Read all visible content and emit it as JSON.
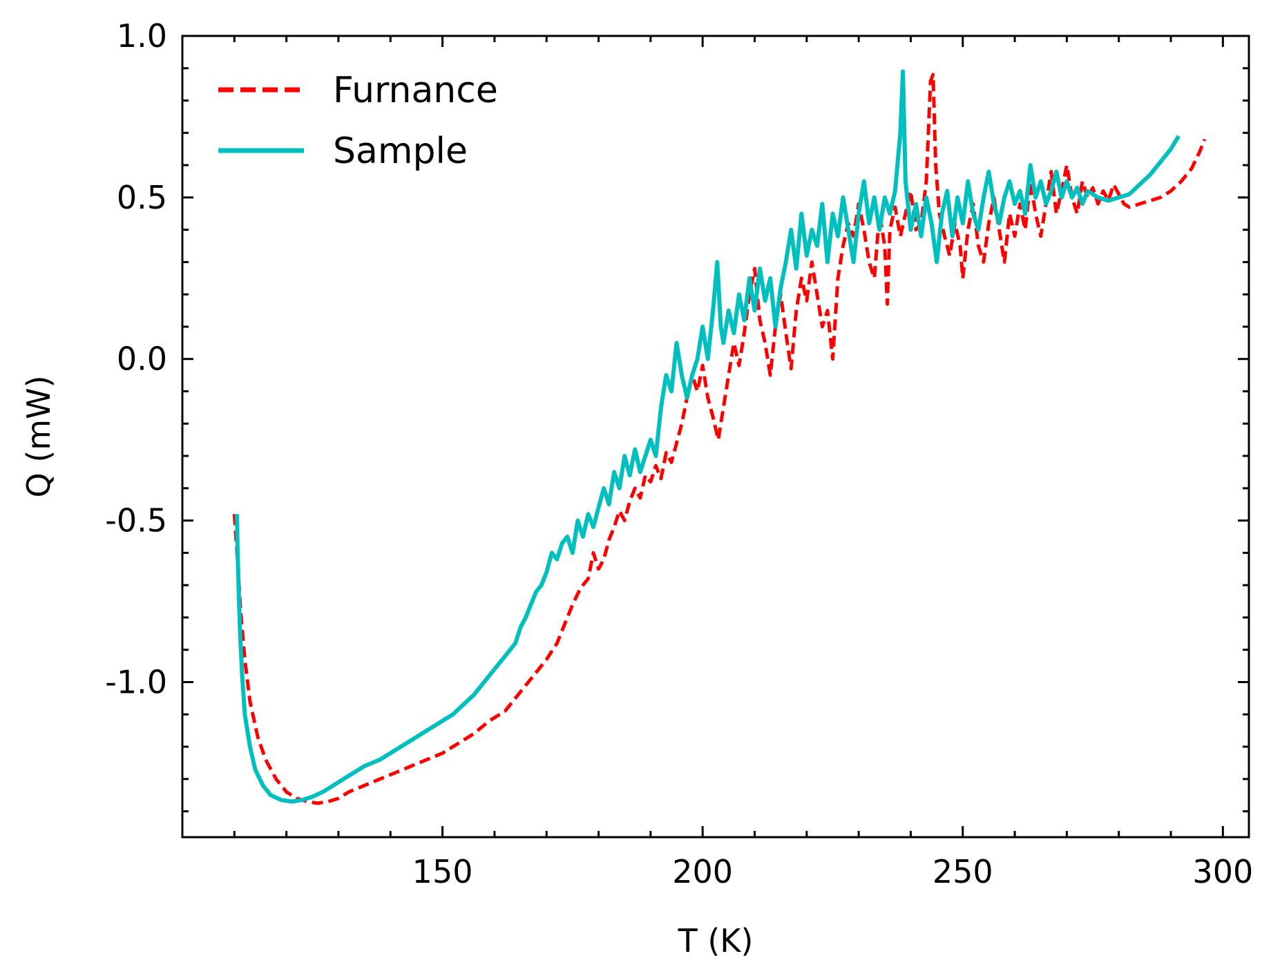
{
  "chart_data": {
    "type": "line",
    "xlabel": "T (K)",
    "ylabel": "Q (mW)",
    "xlim": [
      100,
      305
    ],
    "ylim": [
      -1.48,
      1.0
    ],
    "x_major_ticks": [
      150,
      200,
      250,
      300
    ],
    "x_major_tick_labels": [
      "150",
      "200",
      "250",
      "300"
    ],
    "x_minor_ticks": [
      110,
      120,
      130,
      140,
      160,
      170,
      180,
      190,
      210,
      220,
      230,
      240,
      260,
      270,
      280,
      290
    ],
    "y_major_ticks": [
      -1.0,
      -0.5,
      0.0,
      0.5,
      1.0
    ],
    "y_major_tick_labels": [
      "-1.0",
      "-0.5",
      "0.0",
      "0.5",
      "1.0"
    ],
    "y_minor_ticks": [
      -1.4,
      -1.3,
      -1.2,
      -1.1,
      -0.9,
      -0.8,
      -0.7,
      -0.6,
      -0.4,
      -0.3,
      -0.2,
      -0.1,
      0.1,
      0.2,
      0.3,
      0.4,
      0.6,
      0.7,
      0.8,
      0.9
    ],
    "grid": false,
    "legend_position": "top-left",
    "series": [
      {
        "name": "Furnance",
        "color": "#ff0000",
        "style": "dashed",
        "points": [
          [
            110.0,
            -0.48
          ],
          [
            110.3,
            -0.55
          ],
          [
            110.7,
            -0.65
          ],
          [
            111.2,
            -0.78
          ],
          [
            112.0,
            -0.93
          ],
          [
            113.0,
            -1.06
          ],
          [
            114.5,
            -1.17
          ],
          [
            116.0,
            -1.24
          ],
          [
            118.0,
            -1.3
          ],
          [
            120.0,
            -1.34
          ],
          [
            122.0,
            -1.36
          ],
          [
            124.0,
            -1.37
          ],
          [
            126.0,
            -1.375
          ],
          [
            128.0,
            -1.37
          ],
          [
            130.0,
            -1.36
          ],
          [
            132.0,
            -1.34
          ],
          [
            135.0,
            -1.32
          ],
          [
            138.0,
            -1.3
          ],
          [
            141.0,
            -1.28
          ],
          [
            144.0,
            -1.26
          ],
          [
            147.0,
            -1.24
          ],
          [
            150.0,
            -1.22
          ],
          [
            153.0,
            -1.19
          ],
          [
            156.0,
            -1.16
          ],
          [
            159.0,
            -1.12
          ],
          [
            162.0,
            -1.09
          ],
          [
            164.0,
            -1.05
          ],
          [
            166.0,
            -1.01
          ],
          [
            168.0,
            -0.97
          ],
          [
            170.0,
            -0.93
          ],
          [
            172.0,
            -0.88
          ],
          [
            173.5,
            -0.82
          ],
          [
            175.0,
            -0.76
          ],
          [
            176.5,
            -0.71
          ],
          [
            178.0,
            -0.68
          ],
          [
            179.0,
            -0.6
          ],
          [
            180.0,
            -0.65
          ],
          [
            181.0,
            -0.62
          ],
          [
            182.0,
            -0.56
          ],
          [
            183.0,
            -0.52
          ],
          [
            184.0,
            -0.47
          ],
          [
            185.0,
            -0.5
          ],
          [
            186.0,
            -0.44
          ],
          [
            187.0,
            -0.4
          ],
          [
            188.0,
            -0.43
          ],
          [
            189.0,
            -0.36
          ],
          [
            190.0,
            -0.38
          ],
          [
            191.0,
            -0.33
          ],
          [
            192.0,
            -0.37
          ],
          [
            193.0,
            -0.29
          ],
          [
            194.0,
            -0.32
          ],
          [
            195.0,
            -0.26
          ],
          [
            196.0,
            -0.2
          ],
          [
            197.0,
            -0.12
          ],
          [
            198.0,
            -0.05
          ],
          [
            199.0,
            -0.1
          ],
          [
            200.0,
            -0.02
          ],
          [
            201.0,
            -0.12
          ],
          [
            202.0,
            -0.18
          ],
          [
            203.0,
            -0.25
          ],
          [
            204.0,
            -0.15
          ],
          [
            205.0,
            -0.05
          ],
          [
            206.0,
            0.05
          ],
          [
            207.0,
            -0.02
          ],
          [
            208.0,
            0.08
          ],
          [
            209.0,
            0.2
          ],
          [
            210.0,
            0.28
          ],
          [
            211.0,
            0.12
          ],
          [
            212.0,
            0.05
          ],
          [
            213.0,
            -0.05
          ],
          [
            214.0,
            0.1
          ],
          [
            215.0,
            0.2
          ],
          [
            216.0,
            0.08
          ],
          [
            217.0,
            -0.03
          ],
          [
            218.0,
            0.15
          ],
          [
            219.0,
            0.25
          ],
          [
            220.0,
            0.18
          ],
          [
            221.0,
            0.3
          ],
          [
            222.0,
            0.2
          ],
          [
            223.0,
            0.1
          ],
          [
            224.0,
            0.15
          ],
          [
            225.0,
            0.0
          ],
          [
            226.0,
            0.25
          ],
          [
            227.0,
            0.35
          ],
          [
            228.0,
            0.42
          ],
          [
            229.0,
            0.38
          ],
          [
            230.0,
            0.48
          ],
          [
            231.0,
            0.4
          ],
          [
            232.0,
            0.3
          ],
          [
            233.0,
            0.25
          ],
          [
            234.0,
            0.45
          ],
          [
            235.0,
            0.35
          ],
          [
            235.5,
            0.17
          ],
          [
            236.0,
            0.4
          ],
          [
            237.0,
            0.47
          ],
          [
            238.0,
            0.38
          ],
          [
            239.0,
            0.45
          ],
          [
            240.0,
            0.52
          ],
          [
            241.0,
            0.4
          ],
          [
            242.0,
            0.42
          ],
          [
            243.0,
            0.55
          ],
          [
            243.8,
            0.86
          ],
          [
            244.3,
            0.88
          ],
          [
            244.8,
            0.6
          ],
          [
            245.5,
            0.45
          ],
          [
            246.5,
            0.38
          ],
          [
            247.5,
            0.32
          ],
          [
            248.5,
            0.42
          ],
          [
            249.5,
            0.35
          ],
          [
            250.0,
            0.25
          ],
          [
            251.0,
            0.4
          ],
          [
            252.0,
            0.48
          ],
          [
            253.0,
            0.35
          ],
          [
            254.0,
            0.3
          ],
          [
            255.0,
            0.42
          ],
          [
            256.0,
            0.5
          ],
          [
            257.0,
            0.4
          ],
          [
            258.0,
            0.3
          ],
          [
            259.0,
            0.45
          ],
          [
            260.0,
            0.38
          ],
          [
            261.0,
            0.48
          ],
          [
            262.0,
            0.4
          ],
          [
            263.0,
            0.55
          ],
          [
            264.0,
            0.45
          ],
          [
            265.0,
            0.38
          ],
          [
            266.0,
            0.48
          ],
          [
            267.0,
            0.58
          ],
          [
            268.0,
            0.45
          ],
          [
            269.0,
            0.52
          ],
          [
            270.0,
            0.6
          ],
          [
            271.0,
            0.5
          ],
          [
            272.0,
            0.45
          ],
          [
            273.0,
            0.55
          ],
          [
            274.0,
            0.5
          ],
          [
            275.0,
            0.53
          ],
          [
            276.0,
            0.48
          ],
          [
            277.0,
            0.52
          ],
          [
            278.0,
            0.49
          ],
          [
            279.0,
            0.54
          ],
          [
            280.0,
            0.51
          ],
          [
            281.0,
            0.48
          ],
          [
            282.0,
            0.47
          ],
          [
            284.0,
            0.48
          ],
          [
            286.0,
            0.49
          ],
          [
            288.0,
            0.5
          ],
          [
            290.0,
            0.52
          ],
          [
            292.0,
            0.55
          ],
          [
            294.0,
            0.59
          ],
          [
            295.5,
            0.64
          ],
          [
            296.5,
            0.68
          ]
        ]
      },
      {
        "name": "Sample",
        "color": "#00bfbf",
        "style": "solid",
        "points": [
          [
            110.5,
            -0.48
          ],
          [
            110.6,
            -0.58
          ],
          [
            110.8,
            -0.7
          ],
          [
            111.1,
            -0.85
          ],
          [
            111.5,
            -0.98
          ],
          [
            112.0,
            -1.1
          ],
          [
            113.0,
            -1.2
          ],
          [
            114.0,
            -1.27
          ],
          [
            115.5,
            -1.32
          ],
          [
            117.0,
            -1.35
          ],
          [
            119.0,
            -1.365
          ],
          [
            121.0,
            -1.37
          ],
          [
            123.0,
            -1.365
          ],
          [
            125.0,
            -1.355
          ],
          [
            127.0,
            -1.34
          ],
          [
            129.0,
            -1.32
          ],
          [
            132.0,
            -1.29
          ],
          [
            135.0,
            -1.26
          ],
          [
            138.0,
            -1.24
          ],
          [
            141.0,
            -1.21
          ],
          [
            144.0,
            -1.18
          ],
          [
            147.0,
            -1.15
          ],
          [
            150.0,
            -1.12
          ],
          [
            152.0,
            -1.1
          ],
          [
            154.0,
            -1.07
          ],
          [
            156.0,
            -1.04
          ],
          [
            158.0,
            -1.0
          ],
          [
            160.0,
            -0.96
          ],
          [
            162.0,
            -0.92
          ],
          [
            164.0,
            -0.88
          ],
          [
            165.0,
            -0.83
          ],
          [
            166.0,
            -0.8
          ],
          [
            167.0,
            -0.76
          ],
          [
            168.0,
            -0.72
          ],
          [
            169.0,
            -0.7
          ],
          [
            170.0,
            -0.66
          ],
          [
            171.0,
            -0.6
          ],
          [
            172.0,
            -0.62
          ],
          [
            173.0,
            -0.57
          ],
          [
            174.0,
            -0.55
          ],
          [
            175.0,
            -0.6
          ],
          [
            176.0,
            -0.5
          ],
          [
            177.0,
            -0.55
          ],
          [
            178.0,
            -0.48
          ],
          [
            179.0,
            -0.52
          ],
          [
            180.0,
            -0.46
          ],
          [
            181.0,
            -0.4
          ],
          [
            182.0,
            -0.45
          ],
          [
            183.0,
            -0.35
          ],
          [
            184.0,
            -0.4
          ],
          [
            185.0,
            -0.3
          ],
          [
            186.0,
            -0.36
          ],
          [
            187.0,
            -0.28
          ],
          [
            188.0,
            -0.35
          ],
          [
            189.0,
            -0.3
          ],
          [
            190.0,
            -0.25
          ],
          [
            191.0,
            -0.3
          ],
          [
            192.0,
            -0.15
          ],
          [
            193.0,
            -0.05
          ],
          [
            194.0,
            -0.1
          ],
          [
            195.0,
            0.05
          ],
          [
            196.0,
            -0.05
          ],
          [
            197.0,
            -0.12
          ],
          [
            198.0,
            -0.05
          ],
          [
            199.0,
            0.0
          ],
          [
            200.0,
            0.1
          ],
          [
            201.0,
            0.0
          ],
          [
            202.0,
            0.15
          ],
          [
            202.8,
            0.3
          ],
          [
            203.5,
            0.1
          ],
          [
            204.0,
            0.05
          ],
          [
            205.0,
            0.15
          ],
          [
            206.0,
            0.08
          ],
          [
            207.0,
            0.2
          ],
          [
            208.0,
            0.12
          ],
          [
            209.0,
            0.25
          ],
          [
            210.0,
            0.15
          ],
          [
            211.0,
            0.28
          ],
          [
            212.0,
            0.18
          ],
          [
            213.0,
            0.25
          ],
          [
            214.0,
            0.1
          ],
          [
            215.0,
            0.22
          ],
          [
            216.0,
            0.3
          ],
          [
            217.0,
            0.4
          ],
          [
            218.0,
            0.28
          ],
          [
            219.0,
            0.45
          ],
          [
            220.0,
            0.32
          ],
          [
            221.0,
            0.4
          ],
          [
            222.0,
            0.35
          ],
          [
            223.0,
            0.48
          ],
          [
            224.0,
            0.3
          ],
          [
            225.0,
            0.45
          ],
          [
            226.0,
            0.38
          ],
          [
            227.0,
            0.5
          ],
          [
            228.0,
            0.4
          ],
          [
            229.0,
            0.3
          ],
          [
            230.0,
            0.45
          ],
          [
            231.0,
            0.55
          ],
          [
            232.0,
            0.42
          ],
          [
            233.0,
            0.5
          ],
          [
            234.0,
            0.4
          ],
          [
            235.0,
            0.5
          ],
          [
            236.0,
            0.45
          ],
          [
            237.0,
            0.52
          ],
          [
            238.0,
            0.7
          ],
          [
            238.5,
            0.89
          ],
          [
            239.0,
            0.55
          ],
          [
            240.0,
            0.4
          ],
          [
            241.0,
            0.48
          ],
          [
            242.0,
            0.38
          ],
          [
            243.0,
            0.5
          ],
          [
            244.0,
            0.42
          ],
          [
            245.0,
            0.3
          ],
          [
            246.0,
            0.45
          ],
          [
            247.0,
            0.52
          ],
          [
            248.0,
            0.38
          ],
          [
            249.0,
            0.5
          ],
          [
            250.0,
            0.42
          ],
          [
            251.0,
            0.55
          ],
          [
            252.0,
            0.45
          ],
          [
            253.0,
            0.4
          ],
          [
            254.0,
            0.5
          ],
          [
            255.0,
            0.58
          ],
          [
            256.0,
            0.48
          ],
          [
            257.0,
            0.42
          ],
          [
            258.0,
            0.5
          ],
          [
            259.0,
            0.55
          ],
          [
            260.0,
            0.48
          ],
          [
            261.0,
            0.52
          ],
          [
            262.0,
            0.45
          ],
          [
            263.0,
            0.6
          ],
          [
            264.0,
            0.5
          ],
          [
            265.0,
            0.55
          ],
          [
            266.0,
            0.48
          ],
          [
            267.0,
            0.52
          ],
          [
            268.0,
            0.58
          ],
          [
            269.0,
            0.5
          ],
          [
            270.0,
            0.55
          ],
          [
            271.0,
            0.5
          ],
          [
            272.0,
            0.53
          ],
          [
            273.0,
            0.48
          ],
          [
            274.0,
            0.52
          ],
          [
            276.0,
            0.5
          ],
          [
            278.0,
            0.49
          ],
          [
            280.0,
            0.5
          ],
          [
            282.0,
            0.51
          ],
          [
            284.0,
            0.54
          ],
          [
            286.0,
            0.57
          ],
          [
            288.0,
            0.61
          ],
          [
            290.0,
            0.65
          ],
          [
            291.5,
            0.69
          ]
        ]
      }
    ]
  }
}
